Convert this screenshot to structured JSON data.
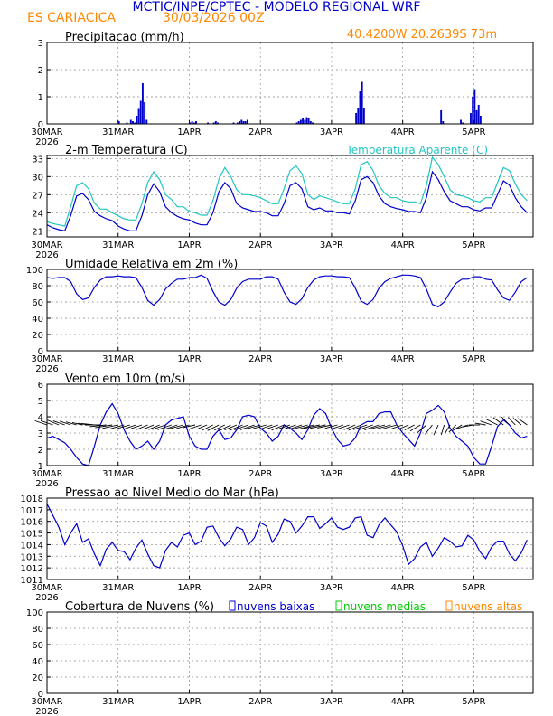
{
  "header": {
    "title": "MCTIC/INPE/CPTEC - MODELO REGIONAL WRF",
    "location": "ES CARIACICA",
    "run": "30/03/2026 00Z",
    "coords": "40.4200W 20.2639S 73m"
  },
  "colors": {
    "blue": "#0000cc",
    "cyan": "#22c6c0",
    "orange": "#ff8800",
    "green": "#00cc00",
    "grid": "#888888"
  },
  "x_ticks": [
    "30MAR",
    "31MAR",
    "1APR",
    "2APR",
    "3APR",
    "4APR",
    "5APR"
  ],
  "x_year": "2026",
  "chart_data": [
    {
      "id": "precip",
      "type": "bar",
      "title": "Precipitacao (mm/h)",
      "ylim": [
        0,
        3
      ],
      "yticks": [
        0,
        1,
        2,
        3
      ],
      "step_hours": 1,
      "values": [
        0,
        0,
        0,
        0,
        0,
        0,
        0,
        0,
        0,
        0,
        0,
        0,
        0,
        0,
        0,
        0,
        0,
        0,
        0,
        0,
        0,
        0,
        0,
        0,
        0,
        0,
        0,
        0,
        0,
        0,
        0,
        0,
        0,
        0,
        0,
        0,
        0.1,
        0,
        0,
        0,
        0.05,
        0,
        0.15,
        0.1,
        0.05,
        0.3,
        0.55,
        0.85,
        1.5,
        0.8,
        0.15,
        0,
        0,
        0,
        0,
        0,
        0,
        0,
        0,
        0,
        0,
        0,
        0,
        0,
        0,
        0,
        0,
        0,
        0,
        0,
        0,
        0,
        0.05,
        0.1,
        0.05,
        0.1,
        0,
        0,
        0,
        0,
        0,
        0.05,
        0,
        0,
        0.05,
        0.1,
        0.05,
        0,
        0,
        0,
        0,
        0,
        0,
        0,
        0.05,
        0,
        0.05,
        0.1,
        0.15,
        0.1,
        0.1,
        0.15,
        0,
        0,
        0,
        0,
        0,
        0,
        0,
        0,
        0,
        0,
        0,
        0,
        0,
        0,
        0,
        0,
        0,
        0,
        0,
        0,
        0,
        0,
        0,
        0,
        0.05,
        0.1,
        0.15,
        0.2,
        0.15,
        0.25,
        0.2,
        0.1,
        0.05,
        0,
        0,
        0,
        0,
        0,
        0,
        0,
        0,
        0,
        0,
        0,
        0,
        0,
        0,
        0,
        0,
        0,
        0,
        0,
        0,
        0,
        0.4,
        0.6,
        1.2,
        1.55,
        0.6,
        0,
        0,
        0,
        0,
        0,
        0,
        0,
        0,
        0,
        0,
        0,
        0,
        0,
        0,
        0,
        0,
        0,
        0,
        0,
        0,
        0,
        0,
        0,
        0,
        0,
        0,
        0,
        0,
        0,
        0,
        0,
        0,
        0,
        0,
        0,
        0,
        0,
        0,
        0.5,
        0.1,
        0,
        0,
        0,
        0,
        0,
        0,
        0,
        0,
        0.15,
        0.05,
        0,
        0,
        0,
        0.4,
        1.0,
        1.25,
        0.5,
        0.7,
        0.3
      ]
    },
    {
      "id": "temp",
      "type": "line",
      "title": "2-m Temperatura (C)",
      "legend": "Temperatura Aparente (C)",
      "ylim": [
        20,
        33.5
      ],
      "yticks": [
        21,
        24,
        27,
        30,
        33
      ],
      "step_hours": 3,
      "series": [
        {
          "name": "2-m Temperatura (C)",
          "color": "#0000cc",
          "values": [
            22.0,
            21.5,
            21.2,
            21.0,
            23.5,
            26.8,
            27.2,
            26.2,
            24.2,
            23.5,
            23.0,
            22.7,
            21.8,
            21.3,
            21.0,
            21.0,
            23.5,
            27.0,
            28.8,
            27.5,
            25.0,
            24.0,
            23.4,
            23.0,
            22.8,
            22.3,
            22.0,
            22.0,
            24.0,
            27.5,
            29.0,
            28.0,
            25.5,
            24.8,
            24.5,
            24.2,
            24.2,
            24.0,
            23.5,
            23.5,
            25.5,
            28.5,
            29.0,
            28.0,
            25.0,
            24.5,
            24.8,
            24.3,
            24.3,
            24.0,
            24.0,
            23.8,
            26.0,
            29.5,
            30.0,
            29.0,
            26.8,
            25.5,
            25.0,
            24.7,
            24.5,
            24.2,
            24.2,
            24.0,
            26.5,
            30.8,
            29.5,
            27.5,
            26.0,
            25.5,
            25.0,
            25.0,
            24.5,
            24.3,
            24.8,
            24.8,
            27.0,
            29.3,
            28.6,
            26.5,
            25.0,
            24.0
          ]
        },
        {
          "name": "Temperatura Aparente (C)",
          "color": "#22c6c0",
          "values": [
            22.5,
            22.2,
            22.0,
            21.8,
            25.0,
            28.5,
            29.0,
            28.0,
            25.6,
            24.6,
            24.6,
            24.0,
            23.5,
            23.0,
            22.8,
            22.8,
            25.5,
            29.0,
            30.8,
            29.5,
            27.0,
            26.2,
            25.0,
            25.0,
            24.2,
            24.0,
            23.6,
            23.6,
            26.0,
            29.6,
            31.5,
            30.0,
            27.8,
            27.0,
            27.0,
            26.8,
            26.5,
            26.0,
            25.5,
            25.5,
            28.0,
            31.0,
            31.8,
            30.5,
            27.0,
            26.2,
            26.8,
            26.5,
            26.2,
            25.8,
            25.5,
            25.5,
            28.0,
            32.0,
            32.5,
            31.0,
            28.5,
            27.2,
            26.5,
            26.5,
            26.0,
            25.8,
            25.8,
            25.5,
            28.5,
            33.2,
            32.0,
            30.0,
            27.8,
            27.0,
            26.8,
            26.5,
            26.0,
            25.8,
            26.5,
            26.5,
            29.0,
            31.5,
            31.0,
            28.8,
            27.0,
            26.0
          ]
        }
      ]
    },
    {
      "id": "humidity",
      "type": "line",
      "title": "Umidade Relativa em 2m (%)",
      "ylim": [
        0,
        100
      ],
      "yticks": [
        0,
        20,
        40,
        60,
        80,
        100
      ],
      "step_hours": 3,
      "values": [
        90,
        89,
        90,
        90,
        85,
        70,
        63,
        65,
        78,
        87,
        91,
        91,
        92,
        91,
        91,
        90,
        78,
        62,
        56,
        63,
        76,
        83,
        88,
        88,
        90,
        90,
        93,
        89,
        73,
        60,
        56,
        63,
        77,
        85,
        88,
        88,
        88,
        91,
        91,
        88,
        72,
        60,
        57,
        64,
        78,
        87,
        91,
        92,
        92,
        91,
        91,
        90,
        77,
        61,
        57,
        63,
        77,
        85,
        89,
        91,
        93,
        93,
        92,
        90,
        76,
        57,
        54,
        60,
        72,
        83,
        88,
        88,
        91,
        91,
        88,
        87,
        75,
        65,
        62,
        72,
        85,
        90
      ]
    },
    {
      "id": "wind",
      "type": "line",
      "title": "Vento em 10m (m/s)",
      "ylim": [
        1,
        6
      ],
      "yticks": [
        1,
        2,
        3,
        4,
        5,
        6
      ],
      "step_hours": 3,
      "values": [
        2.7,
        2.8,
        2.6,
        2.4,
        2.0,
        1.5,
        1.1,
        1.0,
        2.2,
        3.5,
        4.3,
        4.8,
        4.2,
        3.2,
        2.5,
        2.0,
        2.2,
        2.5,
        2.0,
        2.5,
        3.5,
        3.8,
        3.9,
        4.0,
        2.8,
        2.2,
        2.0,
        2.0,
        2.8,
        3.2,
        2.6,
        2.7,
        3.2,
        4.0,
        4.1,
        4.0,
        3.3,
        3.0,
        2.5,
        2.8,
        3.5,
        3.3,
        3.0,
        2.6,
        3.2,
        4.1,
        4.5,
        4.2,
        3.3,
        2.6,
        2.2,
        2.3,
        2.7,
        3.5,
        3.7,
        3.7,
        4.2,
        4.3,
        4.3,
        3.5,
        3.0,
        2.6,
        2.2,
        3.0,
        4.2,
        4.4,
        4.7,
        4.3,
        3.3,
        2.8,
        2.5,
        2.2,
        1.5,
        1.1,
        1.1,
        2.2,
        3.4,
        3.8,
        3.5,
        3.0,
        2.7,
        2.8
      ],
      "direction_deg": [
        300,
        300,
        305,
        300,
        300,
        295,
        290,
        285,
        280,
        270,
        260,
        255,
        250,
        245,
        245,
        240,
        240,
        235,
        235,
        235,
        240,
        240,
        240,
        245,
        245,
        250,
        240,
        235,
        230,
        230,
        230,
        230,
        235,
        235,
        240,
        240,
        245,
        245,
        240,
        240,
        235,
        240,
        240,
        240,
        245,
        245,
        250,
        250,
        250,
        245,
        240,
        240,
        235,
        235,
        240,
        240,
        240,
        245,
        245,
        245,
        240,
        235,
        230,
        225,
        215,
        205,
        195,
        190,
        200,
        210,
        225,
        240,
        255,
        270,
        285,
        300,
        310,
        320,
        330,
        330,
        325,
        320
      ]
    },
    {
      "id": "pressure",
      "type": "line",
      "title": "Pressao ao Nivel Medio do Mar (hPa)",
      "ylim": [
        1011,
        1018
      ],
      "yticks": [
        1011,
        1012,
        1013,
        1014,
        1015,
        1016,
        1017,
        1018
      ],
      "step_hours": 3,
      "values": [
        1017.5,
        1016.5,
        1015.5,
        1014.0,
        1015.0,
        1015.8,
        1014.2,
        1014.5,
        1013.2,
        1012.2,
        1013.6,
        1014.2,
        1013.5,
        1013.4,
        1012.7,
        1013.7,
        1014.4,
        1013.2,
        1012.2,
        1012.0,
        1013.5,
        1014.2,
        1013.8,
        1014.8,
        1015.0,
        1014.0,
        1014.3,
        1015.5,
        1015.6,
        1014.6,
        1013.9,
        1014.5,
        1015.5,
        1015.3,
        1014.0,
        1014.6,
        1015.9,
        1015.6,
        1014.2,
        1014.9,
        1016.2,
        1016.0,
        1015.0,
        1015.6,
        1016.4,
        1016.4,
        1015.4,
        1015.8,
        1016.3,
        1015.5,
        1015.3,
        1015.5,
        1016.3,
        1016.4,
        1014.8,
        1014.6,
        1015.7,
        1016.3,
        1015.7,
        1015.1,
        1013.9,
        1012.3,
        1012.8,
        1013.8,
        1014.2,
        1013.0,
        1013.7,
        1014.6,
        1014.3,
        1013.8,
        1013.9,
        1014.8,
        1014.4,
        1013.4,
        1012.8,
        1013.8,
        1014.3,
        1014.3,
        1013.2,
        1012.6,
        1013.3,
        1014.4
      ]
    },
    {
      "id": "clouds",
      "type": "bar",
      "title": "Cobertura de Nuvens (%)",
      "legend": [
        "nuvens baixas",
        "nuvens medias",
        "nuvens altas"
      ],
      "ylim": [
        0,
        100
      ],
      "yticks": [
        0,
        20,
        40,
        60,
        80,
        100
      ],
      "step_hours": 3,
      "series": [
        {
          "name": "nuvens altas",
          "color": "#ff8800",
          "values": [
            0,
            0,
            0,
            0,
            0,
            0,
            0,
            0,
            0,
            0,
            0,
            0,
            0,
            0,
            0,
            0,
            0,
            0,
            0,
            0,
            0,
            0,
            0,
            0,
            0,
            0,
            0,
            0,
            0,
            0,
            0,
            0,
            0,
            0,
            0,
            0,
            0,
            0,
            0,
            0,
            0,
            0,
            0,
            0,
            0,
            0,
            0,
            0,
            0,
            0,
            0,
            0,
            0,
            0,
            0,
            0,
            0,
            0,
            0,
            0,
            0,
            0,
            0,
            0,
            0,
            0,
            0,
            0,
            0,
            0,
            0,
            0,
            0,
            0,
            0,
            0,
            0,
            0,
            0,
            0,
            0,
            0
          ]
        },
        {
          "name": "nuvens medias",
          "color": "#00cc00",
          "values": [
            0,
            0,
            0,
            0,
            0,
            0,
            0,
            0,
            0,
            0,
            0,
            0,
            0,
            0,
            0,
            0,
            0,
            0,
            0,
            0,
            0,
            0,
            0,
            0,
            0,
            0,
            0,
            0,
            0,
            0,
            0,
            0,
            0,
            0,
            0,
            0,
            0,
            0,
            0,
            0,
            0,
            0,
            0,
            0,
            0,
            0,
            0,
            0,
            0,
            0,
            0,
            0,
            0,
            0,
            0,
            0,
            0,
            0,
            0,
            0,
            0,
            0,
            0,
            0,
            0,
            0,
            0,
            0,
            0,
            0,
            0,
            0,
            0,
            0,
            0,
            0,
            0,
            0,
            0,
            0,
            0,
            0
          ]
        },
        {
          "name": "nuvens baixas",
          "color": "#0000cc",
          "values": [
            0,
            0,
            0,
            0,
            0,
            0,
            0,
            0,
            0,
            0,
            0,
            0,
            0,
            0,
            0,
            0,
            0,
            0,
            0,
            0,
            0,
            0,
            0,
            0,
            0,
            0,
            0,
            0,
            0,
            0,
            0,
            0,
            0,
            0,
            0,
            0,
            0,
            0,
            0,
            0,
            0,
            0,
            0,
            0,
            0,
            0,
            0,
            0,
            0,
            0,
            0,
            0,
            0,
            0,
            0,
            0,
            0,
            0,
            0,
            0,
            0,
            0,
            0,
            0,
            0,
            0,
            0,
            0,
            0,
            0,
            0,
            0,
            0,
            0,
            0,
            0,
            0,
            0,
            0,
            0,
            0,
            0
          ]
        }
      ],
      "hourly": {
        "altas": [
          0,
          0,
          0,
          0,
          0,
          0,
          0,
          0,
          0,
          0,
          0,
          0,
          0,
          0,
          0,
          0,
          0,
          0,
          0,
          0,
          0,
          0,
          0,
          0,
          0,
          0,
          0,
          0,
          0,
          0,
          0,
          0,
          0,
          0,
          0,
          0,
          0,
          0,
          0,
          0,
          0,
          0,
          0,
          0,
          0,
          0,
          0,
          0,
          0,
          0,
          0,
          0,
          0,
          0,
          0,
          0,
          0,
          0,
          0,
          0,
          0,
          0,
          0,
          0,
          0,
          0,
          0,
          0,
          0,
          0,
          0,
          0,
          0,
          0,
          0,
          0,
          0,
          0,
          0,
          0,
          0,
          0,
          0,
          0,
          0,
          0,
          0,
          0,
          0,
          0,
          0,
          0,
          0,
          0,
          0,
          0,
          0,
          0,
          0,
          0,
          0,
          0,
          0,
          0,
          0,
          0,
          0,
          0,
          0,
          0,
          0,
          0,
          0,
          0,
          0,
          0,
          0,
          0,
          0,
          0,
          0,
          0,
          0,
          0,
          0,
          0,
          0,
          0,
          0,
          0,
          0,
          0,
          0,
          0,
          0,
          0,
          0,
          0,
          0,
          0,
          0,
          0,
          0,
          0,
          0,
          0,
          0,
          0,
          0,
          0,
          0,
          0,
          0,
          0,
          0,
          0,
          0,
          0,
          0,
          0,
          0,
          0,
          0,
          0,
          0,
          0,
          0,
          0,
          0,
          0,
          0,
          0,
          0,
          0,
          0,
          0,
          0,
          0,
          0,
          0,
          0,
          0,
          0,
          0,
          0,
          0,
          0,
          0,
          0,
          0,
          0,
          0,
          0,
          0,
          0,
          0,
          0,
          0,
          0,
          0,
          0,
          0,
          0,
          0,
          0,
          0,
          0,
          0,
          0,
          0,
          0,
          0,
          0,
          0,
          0,
          0,
          0,
          0,
          0,
          0,
          0,
          0,
          0,
          0,
          0,
          0,
          0,
          0,
          0,
          0,
          0,
          0,
          0,
          0,
          0,
          0,
          0,
          0
        ]
      }
    }
  ]
}
